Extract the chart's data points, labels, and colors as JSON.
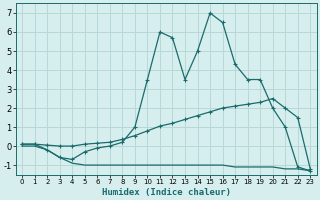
{
  "xlabel": "Humidex (Indice chaleur)",
  "bg_color": "#d7eeee",
  "line_color": "#1a6b6b",
  "grid_color": "#b8d8d8",
  "xlim": [
    -0.5,
    23.5
  ],
  "ylim": [
    -1.5,
    7.5
  ],
  "yticks": [
    -1,
    0,
    1,
    2,
    3,
    4,
    5,
    6,
    7
  ],
  "xticks": [
    0,
    1,
    2,
    3,
    4,
    5,
    6,
    7,
    8,
    9,
    10,
    11,
    12,
    13,
    14,
    15,
    16,
    17,
    18,
    19,
    20,
    21,
    22,
    23
  ],
  "line1_x": [
    0,
    1,
    2,
    3,
    4,
    5,
    6,
    7,
    8,
    9,
    10,
    11,
    12,
    13,
    14,
    15,
    16,
    17,
    18,
    19,
    20,
    21,
    22,
    23
  ],
  "line1_y": [
    0.1,
    0.1,
    -0.2,
    -0.6,
    -0.7,
    -0.3,
    -0.1,
    0.0,
    0.2,
    1.0,
    3.5,
    6.0,
    5.7,
    3.5,
    5.0,
    7.0,
    6.5,
    4.3,
    3.5,
    3.5,
    2.0,
    1.0,
    -1.1,
    -1.3
  ],
  "line2_x": [
    0,
    1,
    2,
    3,
    4,
    5,
    6,
    7,
    8,
    9,
    10,
    11,
    12,
    13,
    14,
    15,
    16,
    17,
    18,
    19,
    20,
    21,
    22,
    23
  ],
  "line2_y": [
    0.1,
    0.1,
    0.05,
    0.0,
    0.0,
    0.1,
    0.15,
    0.2,
    0.35,
    0.55,
    0.8,
    1.05,
    1.2,
    1.4,
    1.6,
    1.8,
    2.0,
    2.1,
    2.2,
    2.3,
    2.5,
    2.0,
    1.5,
    -1.2
  ],
  "line3_x": [
    0,
    1,
    2,
    3,
    4,
    5,
    6,
    7,
    8,
    9,
    10,
    11,
    12,
    13,
    14,
    15,
    16,
    17,
    18,
    19,
    20,
    21,
    22,
    23
  ],
  "line3_y": [
    0.0,
    0.0,
    -0.2,
    -0.6,
    -0.9,
    -1.0,
    -1.0,
    -1.0,
    -1.0,
    -1.0,
    -1.0,
    -1.0,
    -1.0,
    -1.0,
    -1.0,
    -1.0,
    -1.0,
    -1.1,
    -1.1,
    -1.1,
    -1.1,
    -1.2,
    -1.2,
    -1.3
  ]
}
